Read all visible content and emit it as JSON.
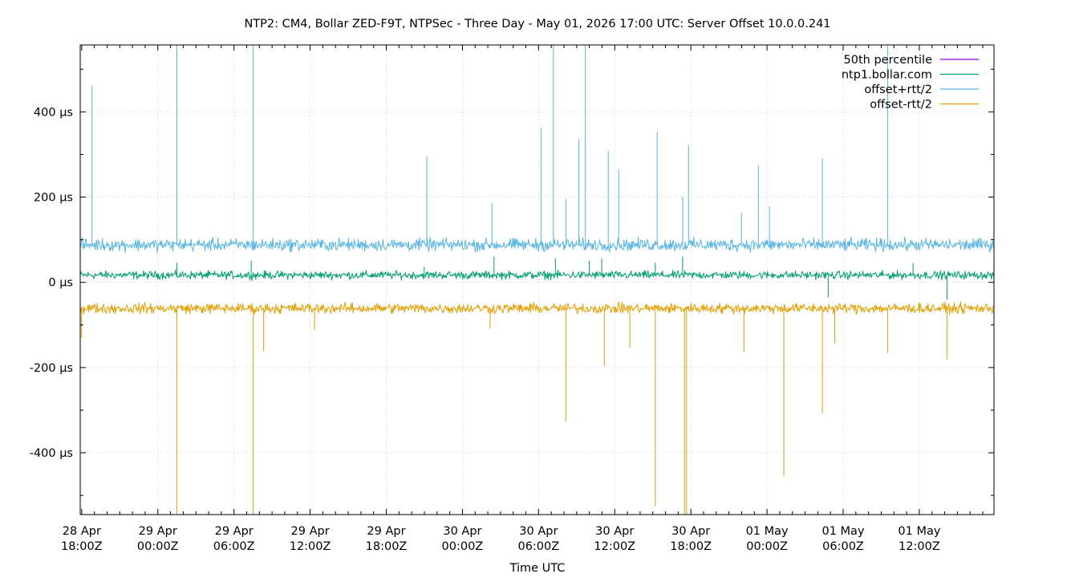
{
  "chart_data": {
    "type": "line",
    "title": "NTP2: CM4, Bollar ZED-F9T, NTPSec - Three Day - May 01, 2026 17:00 UTC: Server Offset 10.0.0.241",
    "xlabel": "Time UTC",
    "ylabel": "",
    "y_unit": "µs",
    "ylim": [
      -545,
      557
    ],
    "y_ticks": [
      {
        "value": 400,
        "label": "400 µs"
      },
      {
        "value": 200,
        "label": "200 µs"
      },
      {
        "value": 0,
        "label": "0 µs"
      },
      {
        "value": -200,
        "label": "-200 µs"
      },
      {
        "value": -400,
        "label": "-400 µs"
      }
    ],
    "xlim": [
      "2026-04-28T17:53Z",
      "2026-05-01T17:53Z"
    ],
    "x_ticks": [
      {
        "value": "2026-04-28T18:00Z",
        "line1": "28 Apr",
        "line2": "18:00Z"
      },
      {
        "value": "2026-04-29T00:00Z",
        "line1": "29 Apr",
        "line2": "00:00Z"
      },
      {
        "value": "2026-04-29T06:00Z",
        "line1": "29 Apr",
        "line2": "06:00Z"
      },
      {
        "value": "2026-04-29T12:00Z",
        "line1": "29 Apr",
        "line2": "12:00Z"
      },
      {
        "value": "2026-04-29T18:00Z",
        "line1": "29 Apr",
        "line2": "18:00Z"
      },
      {
        "value": "2026-04-30T00:00Z",
        "line1": "30 Apr",
        "line2": "00:00Z"
      },
      {
        "value": "2026-04-30T06:00Z",
        "line1": "30 Apr",
        "line2": "06:00Z"
      },
      {
        "value": "2026-04-30T12:00Z",
        "line1": "30 Apr",
        "line2": "12:00Z"
      },
      {
        "value": "2026-04-30T18:00Z",
        "line1": "30 Apr",
        "line2": "18:00Z"
      },
      {
        "value": "2026-05-01T00:00Z",
        "line1": "01 May",
        "line2": "00:00Z"
      },
      {
        "value": "2026-05-01T06:00Z",
        "line1": "01 May",
        "line2": "06:00Z"
      },
      {
        "value": "2026-05-01T12:00Z",
        "line1": "01 May",
        "line2": "12:00Z"
      }
    ],
    "grid": true,
    "legend_position": "top-right",
    "series": [
      {
        "name": "50th percentile",
        "color": "#9400d3",
        "values": []
      },
      {
        "name": "ntp1.bollar.com",
        "color": "#009e73",
        "baseline": 17,
        "noise": 7,
        "spikes": [
          {
            "t": "2026-04-29T01:30Z",
            "v": 45
          },
          {
            "t": "2026-04-29T07:20Z",
            "v": 50
          },
          {
            "t": "2026-04-29T21:00Z",
            "v": 35
          },
          {
            "t": "2026-04-30T02:30Z",
            "v": 60
          },
          {
            "t": "2026-04-30T07:20Z",
            "v": 55
          },
          {
            "t": "2026-04-30T10:00Z",
            "v": 50
          },
          {
            "t": "2026-04-30T11:00Z",
            "v": 55
          },
          {
            "t": "2026-04-30T15:10Z",
            "v": 45
          },
          {
            "t": "2026-04-30T17:20Z",
            "v": 60
          },
          {
            "t": "2026-05-01T04:50Z",
            "v": -35
          },
          {
            "t": "2026-05-01T11:30Z",
            "v": 45
          },
          {
            "t": "2026-05-01T14:10Z",
            "v": -40
          }
        ]
      },
      {
        "name": "offset+rtt/2",
        "color": "#56b4e9",
        "baseline": 88,
        "noise": 11,
        "spikes": [
          {
            "t": "2026-04-28T18:50Z",
            "v": 460
          },
          {
            "t": "2026-04-29T01:30Z",
            "v": 557
          },
          {
            "t": "2026-04-29T07:30Z",
            "v": 557
          },
          {
            "t": "2026-04-29T21:10Z",
            "v": 295
          },
          {
            "t": "2026-04-30T02:20Z",
            "v": 185
          },
          {
            "t": "2026-04-30T06:10Z",
            "v": 362
          },
          {
            "t": "2026-04-30T07:10Z",
            "v": 557
          },
          {
            "t": "2026-04-30T08:10Z",
            "v": 195
          },
          {
            "t": "2026-04-30T09:10Z",
            "v": 335
          },
          {
            "t": "2026-04-30T09:40Z",
            "v": 555
          },
          {
            "t": "2026-04-30T11:30Z",
            "v": 308
          },
          {
            "t": "2026-04-30T12:20Z",
            "v": 265
          },
          {
            "t": "2026-04-30T15:20Z",
            "v": 352
          },
          {
            "t": "2026-04-30T17:20Z",
            "v": 200
          },
          {
            "t": "2026-04-30T17:50Z",
            "v": 322
          },
          {
            "t": "2026-04-30T22:00Z",
            "v": 162
          },
          {
            "t": "2026-04-30T23:20Z",
            "v": 273
          },
          {
            "t": "2026-05-01T00:10Z",
            "v": 178
          },
          {
            "t": "2026-05-01T04:20Z",
            "v": 290
          },
          {
            "t": "2026-05-01T09:30Z",
            "v": 557
          }
        ]
      },
      {
        "name": "offset-rtt/2",
        "color": "#e69f00",
        "baseline": -61,
        "noise": 9,
        "spikes": [
          {
            "t": "2026-04-28T18:00Z",
            "v": -130
          },
          {
            "t": "2026-04-29T01:30Z",
            "v": -545
          },
          {
            "t": "2026-04-29T07:30Z",
            "v": -545
          },
          {
            "t": "2026-04-29T08:20Z",
            "v": -160
          },
          {
            "t": "2026-04-29T12:20Z",
            "v": -112
          },
          {
            "t": "2026-04-30T02:10Z",
            "v": -108
          },
          {
            "t": "2026-04-30T08:10Z",
            "v": -325
          },
          {
            "t": "2026-04-30T11:10Z",
            "v": -196
          },
          {
            "t": "2026-04-30T13:10Z",
            "v": -152
          },
          {
            "t": "2026-04-30T15:10Z",
            "v": -525
          },
          {
            "t": "2026-04-30T17:30Z",
            "v": -545
          },
          {
            "t": "2026-04-30T17:40Z",
            "v": -545
          },
          {
            "t": "2026-04-30T22:10Z",
            "v": -163
          },
          {
            "t": "2026-05-01T01:20Z",
            "v": -455
          },
          {
            "t": "2026-05-01T04:20Z",
            "v": -307
          },
          {
            "t": "2026-05-01T05:20Z",
            "v": -142
          },
          {
            "t": "2026-05-01T09:30Z",
            "v": -165
          },
          {
            "t": "2026-05-01T14:10Z",
            "v": -180
          }
        ]
      }
    ]
  }
}
